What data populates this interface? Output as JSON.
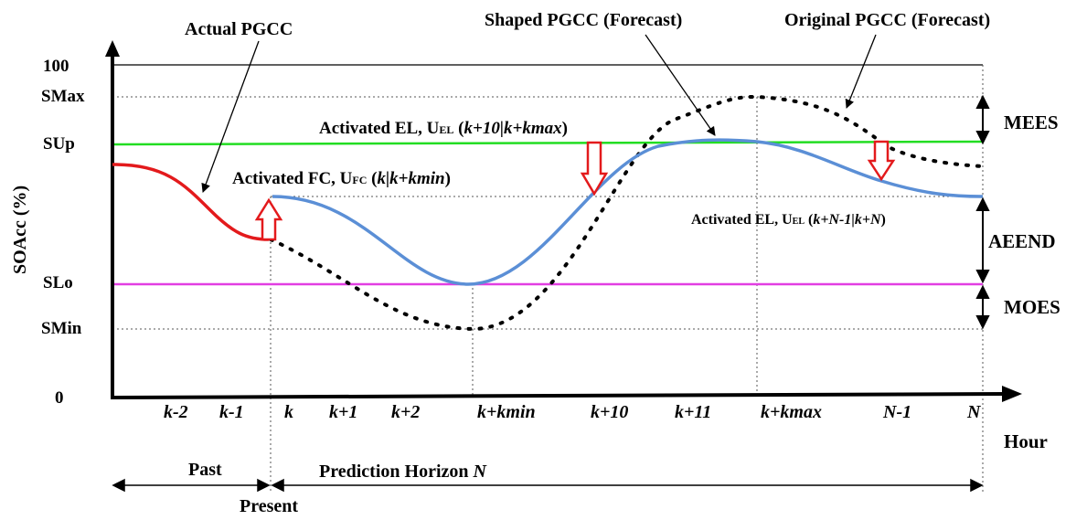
{
  "axes": {
    "y_label": "SOAcc (%)",
    "x_label": "Hour",
    "y_ticks": [
      "100",
      "SMax",
      "SUp",
      "SLo",
      "SMin",
      "0"
    ],
    "x_ticks": [
      "k-2",
      "k-1",
      "k",
      "k+1",
      "k+2",
      "k+kmin",
      "k+10",
      "k+11",
      "k+kmax",
      "N-1",
      "N"
    ]
  },
  "curves": {
    "actual": "Actual PGCC",
    "shaped": "Shaped PGCC (Forecast)",
    "original": "Original PGCC (Forecast)"
  },
  "annotations": {
    "el_top": {
      "prefix": "Activated EL, U",
      "sub": "EL",
      "paren": " (",
      "arg": "k+10|k+kmax",
      "close": ")"
    },
    "fc": {
      "prefix": "Activated FC, U",
      "sub": "FC",
      "paren": " (",
      "arg": "k|k+kmin",
      "close": ")"
    },
    "el_bottom": {
      "prefix": "Activated EL, U",
      "sub": "EL",
      "paren": " (",
      "arg": "k+N-1|k+N",
      "close": ")"
    }
  },
  "zones": {
    "mees": "MEES",
    "aeend": "AEEND",
    "moes": "MOES"
  },
  "timeline": {
    "past": "Past",
    "horizon": "Prediction  Horizon",
    "horizon_n": "N",
    "present": "Present"
  },
  "colors": {
    "actual": "#e31a1c",
    "shaped": "#5b8fd6",
    "sup_line": "#22dd22",
    "slo_line": "#e23ee2",
    "arrow": "#e31a1c",
    "original": "#000000"
  }
}
